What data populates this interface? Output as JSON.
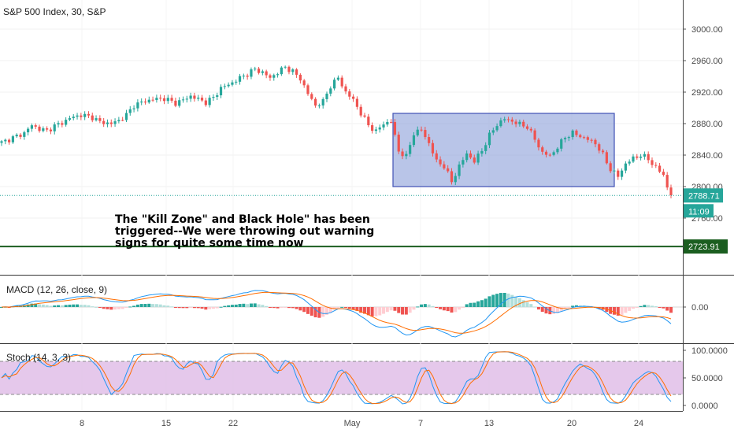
{
  "chart_data": [
    {
      "type": "candlestick",
      "title": "S&P 500 Index, 30, S&P",
      "y_ticks": [
        3000.0,
        2960.0,
        2920.0,
        2880.0,
        2840.0,
        2800.0,
        2760.0
      ],
      "y_tick_labels": [
        "3000.00",
        "2960.00",
        "2920.00",
        "2880.00",
        "2840.00",
        "2800.00",
        "2760.00"
      ],
      "ylim": [
        2722,
        3020
      ],
      "x_tick_labels": [
        "8",
        "15",
        "22",
        "May",
        "7",
        "13",
        "20",
        "24"
      ],
      "price_path": [
        [
          0,
          2856
        ],
        [
          3,
          2862
        ],
        [
          6,
          2868
        ],
        [
          8,
          2878
        ],
        [
          10,
          2873
        ],
        [
          12,
          2871
        ],
        [
          14,
          2877
        ],
        [
          16,
          2881
        ],
        [
          18,
          2887
        ],
        [
          21,
          2891
        ],
        [
          24,
          2888
        ],
        [
          26,
          2882
        ],
        [
          29,
          2880
        ],
        [
          31,
          2884
        ],
        [
          33,
          2891
        ],
        [
          35,
          2903
        ],
        [
          37,
          2907
        ],
        [
          40,
          2911
        ],
        [
          43,
          2912
        ],
        [
          46,
          2906
        ],
        [
          48,
          2910
        ],
        [
          50,
          2915
        ],
        [
          52,
          2911
        ],
        [
          54,
          2907
        ],
        [
          56,
          2913
        ],
        [
          58,
          2925
        ],
        [
          61,
          2932
        ],
        [
          63,
          2938
        ],
        [
          65,
          2943
        ],
        [
          67,
          2949
        ],
        [
          69,
          2945
        ],
        [
          71,
          2938
        ],
        [
          73,
          2945
        ],
        [
          75,
          2952
        ],
        [
          77,
          2946
        ],
        [
          79,
          2937
        ],
        [
          81,
          2918
        ],
        [
          83,
          2903
        ],
        [
          85,
          2908
        ],
        [
          87,
          2928
        ],
        [
          89,
          2938
        ],
        [
          91,
          2920
        ],
        [
          93,
          2910
        ],
        [
          95,
          2893
        ],
        [
          97,
          2878
        ],
        [
          99,
          2870
        ],
        [
          101,
          2880
        ],
        [
          103,
          2883
        ],
        [
          105,
          2845
        ],
        [
          107,
          2838
        ],
        [
          109,
          2868
        ],
        [
          111,
          2872
        ],
        [
          113,
          2855
        ],
        [
          115,
          2832
        ],
        [
          117,
          2826
        ],
        [
          119,
          2806
        ],
        [
          121,
          2826
        ],
        [
          123,
          2842
        ],
        [
          125,
          2832
        ],
        [
          127,
          2846
        ],
        [
          129,
          2865
        ],
        [
          131,
          2879
        ],
        [
          133,
          2886
        ],
        [
          135,
          2883
        ],
        [
          137,
          2879
        ],
        [
          139,
          2876
        ],
        [
          141,
          2860
        ],
        [
          143,
          2843
        ],
        [
          145,
          2839
        ],
        [
          147,
          2850
        ],
        [
          149,
          2863
        ],
        [
          151,
          2868
        ],
        [
          153,
          2864
        ],
        [
          155,
          2860
        ],
        [
          157,
          2855
        ],
        [
          159,
          2840
        ],
        [
          161,
          2822
        ],
        [
          163,
          2813
        ],
        [
          165,
          2829
        ],
        [
          167,
          2836
        ],
        [
          169,
          2840
        ],
        [
          171,
          2835
        ],
        [
          173,
          2824
        ],
        [
          175,
          2815
        ],
        [
          176,
          2799
        ],
        [
          177,
          2789
        ]
      ],
      "zone_rectangle": {
        "y_top": 2893,
        "y_bottom": 2800
      },
      "price_line": {
        "value": 2788.71,
        "label": "2788.71",
        "countdown": "11:09",
        "color": "#26a69a"
      },
      "support_line": {
        "value": 2723.91,
        "label": "2723.91",
        "color": "#1b5e20"
      },
      "annotation_lines": [
        "The \"Kill Zone\" and Black Hole\" has been",
        "triggered--We were throwing out warning",
        "signs for quite some time now"
      ]
    },
    {
      "type": "line",
      "title": "MACD (12, 26, close, 9)",
      "y_ticks": [
        0.0
      ],
      "y_tick_labels": [
        "0.00"
      ],
      "series": [
        {
          "color": "#2196f3"
        },
        {
          "color": "#ff6d00"
        }
      ],
      "histogram_colors": {
        "rising_pos": "#26a69a",
        "falling_pos": "#b2dfdb",
        "falling_neg": "#ef5350",
        "rising_neg": "#ffcdd2"
      }
    },
    {
      "type": "line",
      "title": "Stoch (14, 3, 3)",
      "y_ticks": [
        100,
        50,
        0
      ],
      "y_tick_labels": [
        "100.0000",
        "50.0000",
        "0.0000"
      ],
      "band": [
        20,
        80
      ],
      "series": [
        {
          "color": "#2196f3"
        },
        {
          "color": "#ff6d00"
        }
      ]
    }
  ],
  "colors": {
    "up": "#26a69a",
    "down": "#ef5350",
    "zone_fill": "#8b9fd8",
    "zone_stroke": "#3f51b5",
    "band_fill": "#e1bee7"
  }
}
